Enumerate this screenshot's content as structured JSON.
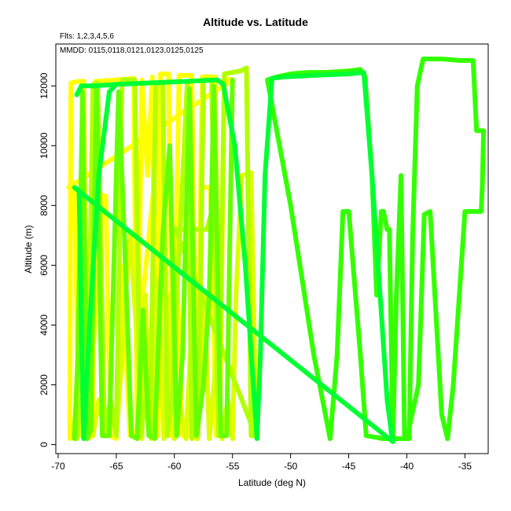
{
  "chart_data": {
    "type": "line",
    "title": "Altitude vs. Latitude",
    "subtitle_lines": [
      "Flts: 1,2,3,4,5,6",
      "MMDD: 0115,0118,0121,0123,0125,0125"
    ],
    "xlabel": "Latitude (deg N)",
    "ylabel": "Altitude (m)",
    "xlim": [
      -70.2,
      -33.0
    ],
    "ylim": [
      -300,
      13400
    ],
    "xticks": [
      -70,
      -65,
      -60,
      -55,
      -50,
      -45,
      -40,
      -35
    ],
    "yticks": [
      0,
      2000,
      4000,
      6000,
      8000,
      10000,
      12000
    ],
    "grid": false,
    "series": [
      {
        "color": "#ffff00",
        "points": [
          [
            -69,
            200
          ],
          [
            -68.9,
            12100
          ],
          [
            -68.2,
            12150
          ],
          [
            -67.8,
            12150
          ],
          [
            -67.5,
            200
          ],
          [
            -67,
            300
          ],
          [
            -66.8,
            12150
          ],
          [
            -65,
            12200
          ],
          [
            -63.5,
            12250
          ],
          [
            -63.2,
            200
          ],
          [
            -62.8,
            12200
          ],
          [
            -62.3,
            9000
          ],
          [
            -61.9,
            12300
          ],
          [
            -61.6,
            300
          ],
          [
            -61.2,
            12400
          ],
          [
            -60.5,
            12400
          ],
          [
            -60.1,
            300
          ],
          [
            -59.6,
            12350
          ],
          [
            -58.5,
            12350
          ],
          [
            -58.1,
            200
          ],
          [
            -57.6,
            12300
          ],
          [
            -56.5,
            12300
          ],
          [
            -56.1,
            300
          ],
          [
            -55.7,
            12250
          ],
          [
            -55,
            12200
          ],
          [
            -69.1,
            8600
          ],
          [
            -68.6,
            8600
          ],
          [
            -68.2,
            300
          ],
          [
            -67.6,
            400
          ],
          [
            -67,
            3000
          ],
          [
            -66.2,
            8350
          ],
          [
            -65.9,
            8300
          ],
          [
            -65.5,
            300
          ],
          [
            -65,
            200
          ],
          [
            -64.6,
            6000
          ],
          [
            -63.8,
            300
          ],
          [
            -63.2,
            500
          ],
          [
            -62.7,
            5000
          ],
          [
            -61.8,
            8500
          ],
          [
            -61.4,
            300
          ],
          [
            -60.9,
            8450
          ],
          [
            -60.4,
            300
          ],
          [
            -59.8,
            6000
          ],
          [
            -59.3,
            300
          ],
          [
            -58.6,
            300
          ],
          [
            -58.1,
            2000
          ],
          [
            -57.7,
            8600
          ],
          [
            -56.9,
            8600
          ],
          [
            -56.4,
            300
          ],
          [
            -56,
            300
          ]
        ]
      },
      {
        "color": "#ddff00",
        "points": [
          [
            -68.7,
            300
          ],
          [
            -68.4,
            1500
          ],
          [
            -68,
            300
          ],
          [
            -67.6,
            1500
          ],
          [
            -67,
            300
          ],
          [
            -66.5,
            1500
          ],
          [
            -66,
            300
          ],
          [
            -65.5,
            1500
          ],
          [
            -65,
            300
          ],
          [
            -64.6,
            2500
          ],
          [
            -64.2,
            5000
          ],
          [
            -63.8,
            7100
          ],
          [
            -63.3,
            4000
          ],
          [
            -62.8,
            200
          ],
          [
            -62.5,
            5000
          ],
          [
            -62,
            200
          ],
          [
            -61.7,
            4000
          ],
          [
            -61.3,
            5600
          ],
          [
            -60.9,
            200
          ],
          [
            -60.4,
            5000
          ],
          [
            -60,
            200
          ],
          [
            -59.5,
            1200
          ],
          [
            -59,
            200
          ],
          [
            -58.5,
            4000
          ],
          [
            -58,
            200
          ],
          [
            -57.4,
            5000
          ],
          [
            -57,
            200
          ],
          [
            -56.4,
            2800
          ],
          [
            -55.9,
            200
          ],
          [
            -55.4,
            1500
          ],
          [
            -55,
            200
          ],
          [
            -54.7,
            5000
          ],
          [
            -54.2,
            9000
          ],
          [
            -53.4,
            9100
          ],
          [
            -53,
            1000
          ]
        ]
      },
      {
        "color": "#b2ff00",
        "points": [
          [
            -68.4,
            200
          ],
          [
            -68,
            1500
          ],
          [
            -67.5,
            300
          ],
          [
            -67,
            12050
          ],
          [
            -66.6,
            12100
          ],
          [
            -66,
            300
          ],
          [
            -65.5,
            1500
          ],
          [
            -65,
            300
          ],
          [
            -64.5,
            12200
          ],
          [
            -63.4,
            12200
          ],
          [
            -62.9,
            300
          ],
          [
            -62.5,
            1500
          ],
          [
            -62.1,
            300
          ],
          [
            -61.6,
            12100
          ],
          [
            -61,
            12050
          ],
          [
            -60.6,
            300
          ],
          [
            -60.2,
            1500
          ],
          [
            -59.7,
            5700
          ],
          [
            -59.4,
            8000
          ],
          [
            -58.9,
            12100
          ],
          [
            -58.5,
            200
          ],
          [
            -57.9,
            1500
          ],
          [
            -57.5,
            12200
          ],
          [
            -56.8,
            12200
          ],
          [
            -56.2,
            300
          ],
          [
            -55.7,
            12400
          ],
          [
            -54.3,
            12500
          ],
          [
            -53.8,
            12600
          ],
          [
            -53.4,
            300
          ],
          [
            -53,
            300
          ],
          [
            -59.9,
            7200
          ],
          [
            -57.2,
            7200
          ],
          [
            -56.5,
            8200
          ]
        ]
      },
      {
        "color": "#66ff00",
        "points": [
          [
            -68.6,
            200
          ],
          [
            -68.3,
            3000
          ],
          [
            -67.9,
            11800
          ],
          [
            -67.5,
            200
          ],
          [
            -67.2,
            500
          ],
          [
            -66.7,
            11900
          ],
          [
            -66.2,
            300
          ],
          [
            -65.6,
            300
          ],
          [
            -64.8,
            11800
          ],
          [
            -64.3,
            7000
          ],
          [
            -63.7,
            300
          ],
          [
            -63.2,
            200
          ],
          [
            -62.7,
            4500
          ],
          [
            -62.2,
            300
          ],
          [
            -61.7,
            200
          ],
          [
            -61,
            7000
          ],
          [
            -60.4,
            10000
          ],
          [
            -59.8,
            300
          ],
          [
            -59.3,
            3000
          ],
          [
            -58.7,
            11900
          ],
          [
            -58.1,
            300
          ],
          [
            -57.5,
            2000
          ],
          [
            -57,
            5000
          ],
          [
            -56.6,
            12000
          ],
          [
            -56,
            300
          ],
          [
            -55.5,
            300
          ],
          [
            -55,
            12200
          ]
        ]
      },
      {
        "color": "#33ff00",
        "points": [
          [
            -52,
            12200
          ],
          [
            -51.2,
            12300
          ],
          [
            -50,
            12400
          ],
          [
            -48.5,
            12450
          ],
          [
            -47,
            12450
          ],
          [
            -45,
            12500
          ],
          [
            -44,
            12550
          ],
          [
            -43.6,
            12300
          ],
          [
            -43,
            9000
          ],
          [
            -42.6,
            5000
          ],
          [
            -42.2,
            7800
          ],
          [
            -42,
            7800
          ],
          [
            -41.7,
            7200
          ],
          [
            -41.5,
            7200
          ],
          [
            -41.2,
            200
          ],
          [
            -40.9,
            5000
          ],
          [
            -40.5,
            9000
          ],
          [
            -40.2,
            300
          ],
          [
            -39.8,
            200
          ],
          [
            -39.5,
            7000
          ],
          [
            -39.1,
            12000
          ],
          [
            -38.6,
            12900
          ],
          [
            -37,
            12900
          ],
          [
            -35.5,
            12850
          ],
          [
            -34.3,
            12850
          ],
          [
            -34,
            10500
          ],
          [
            -33.4,
            10500
          ],
          [
            -33.5,
            8700
          ],
          [
            -33.6,
            7800
          ],
          [
            -34.4,
            7800
          ],
          [
            -35,
            7800
          ],
          [
            -36,
            2000
          ],
          [
            -36.5,
            200
          ],
          [
            -37,
            1000
          ],
          [
            -38,
            7800
          ],
          [
            -38.5,
            7700
          ],
          [
            -39,
            2000
          ],
          [
            -40,
            200
          ],
          [
            -42,
            200
          ],
          [
            -43.5,
            300
          ],
          [
            -44,
            3000
          ],
          [
            -45,
            7800
          ],
          [
            -45.5,
            7800
          ],
          [
            -46,
            3000
          ],
          [
            -46.6,
            200
          ],
          [
            -48,
            3000
          ],
          [
            -50,
            8000
          ],
          [
            -52,
            12200
          ]
        ]
      },
      {
        "color": "#00ff33",
        "points": [
          [
            -68.4,
            11700
          ],
          [
            -68,
            12000
          ],
          [
            -66.8,
            12000
          ],
          [
            -65,
            12050
          ],
          [
            -62,
            12100
          ],
          [
            -59,
            12150
          ],
          [
            -56.3,
            12200
          ],
          [
            -55.8,
            12050
          ],
          [
            -54.8,
            10000
          ],
          [
            -53.9,
            6000
          ],
          [
            -53.2,
            2000
          ],
          [
            -52.9,
            200
          ],
          [
            -52.6,
            3000
          ],
          [
            -52.2,
            9000
          ],
          [
            -51.6,
            12250
          ],
          [
            -50.5,
            12300
          ],
          [
            -48,
            12350
          ],
          [
            -45,
            12400
          ],
          [
            -43.7,
            12450
          ],
          [
            -43,
            9000
          ],
          [
            -42.3,
            5000
          ],
          [
            -41.7,
            1500
          ],
          [
            -41.3,
            300
          ],
          [
            -41.2,
            100
          ],
          [
            -68.6,
            8600
          ],
          [
            -68.2,
            8500
          ],
          [
            -67.9,
            1800
          ],
          [
            -67.8,
            200
          ],
          [
            -67.3,
            4000
          ],
          [
            -66.5,
            9000
          ],
          [
            -65.6,
            11800
          ],
          [
            -65,
            12050
          ]
        ]
      }
    ]
  }
}
